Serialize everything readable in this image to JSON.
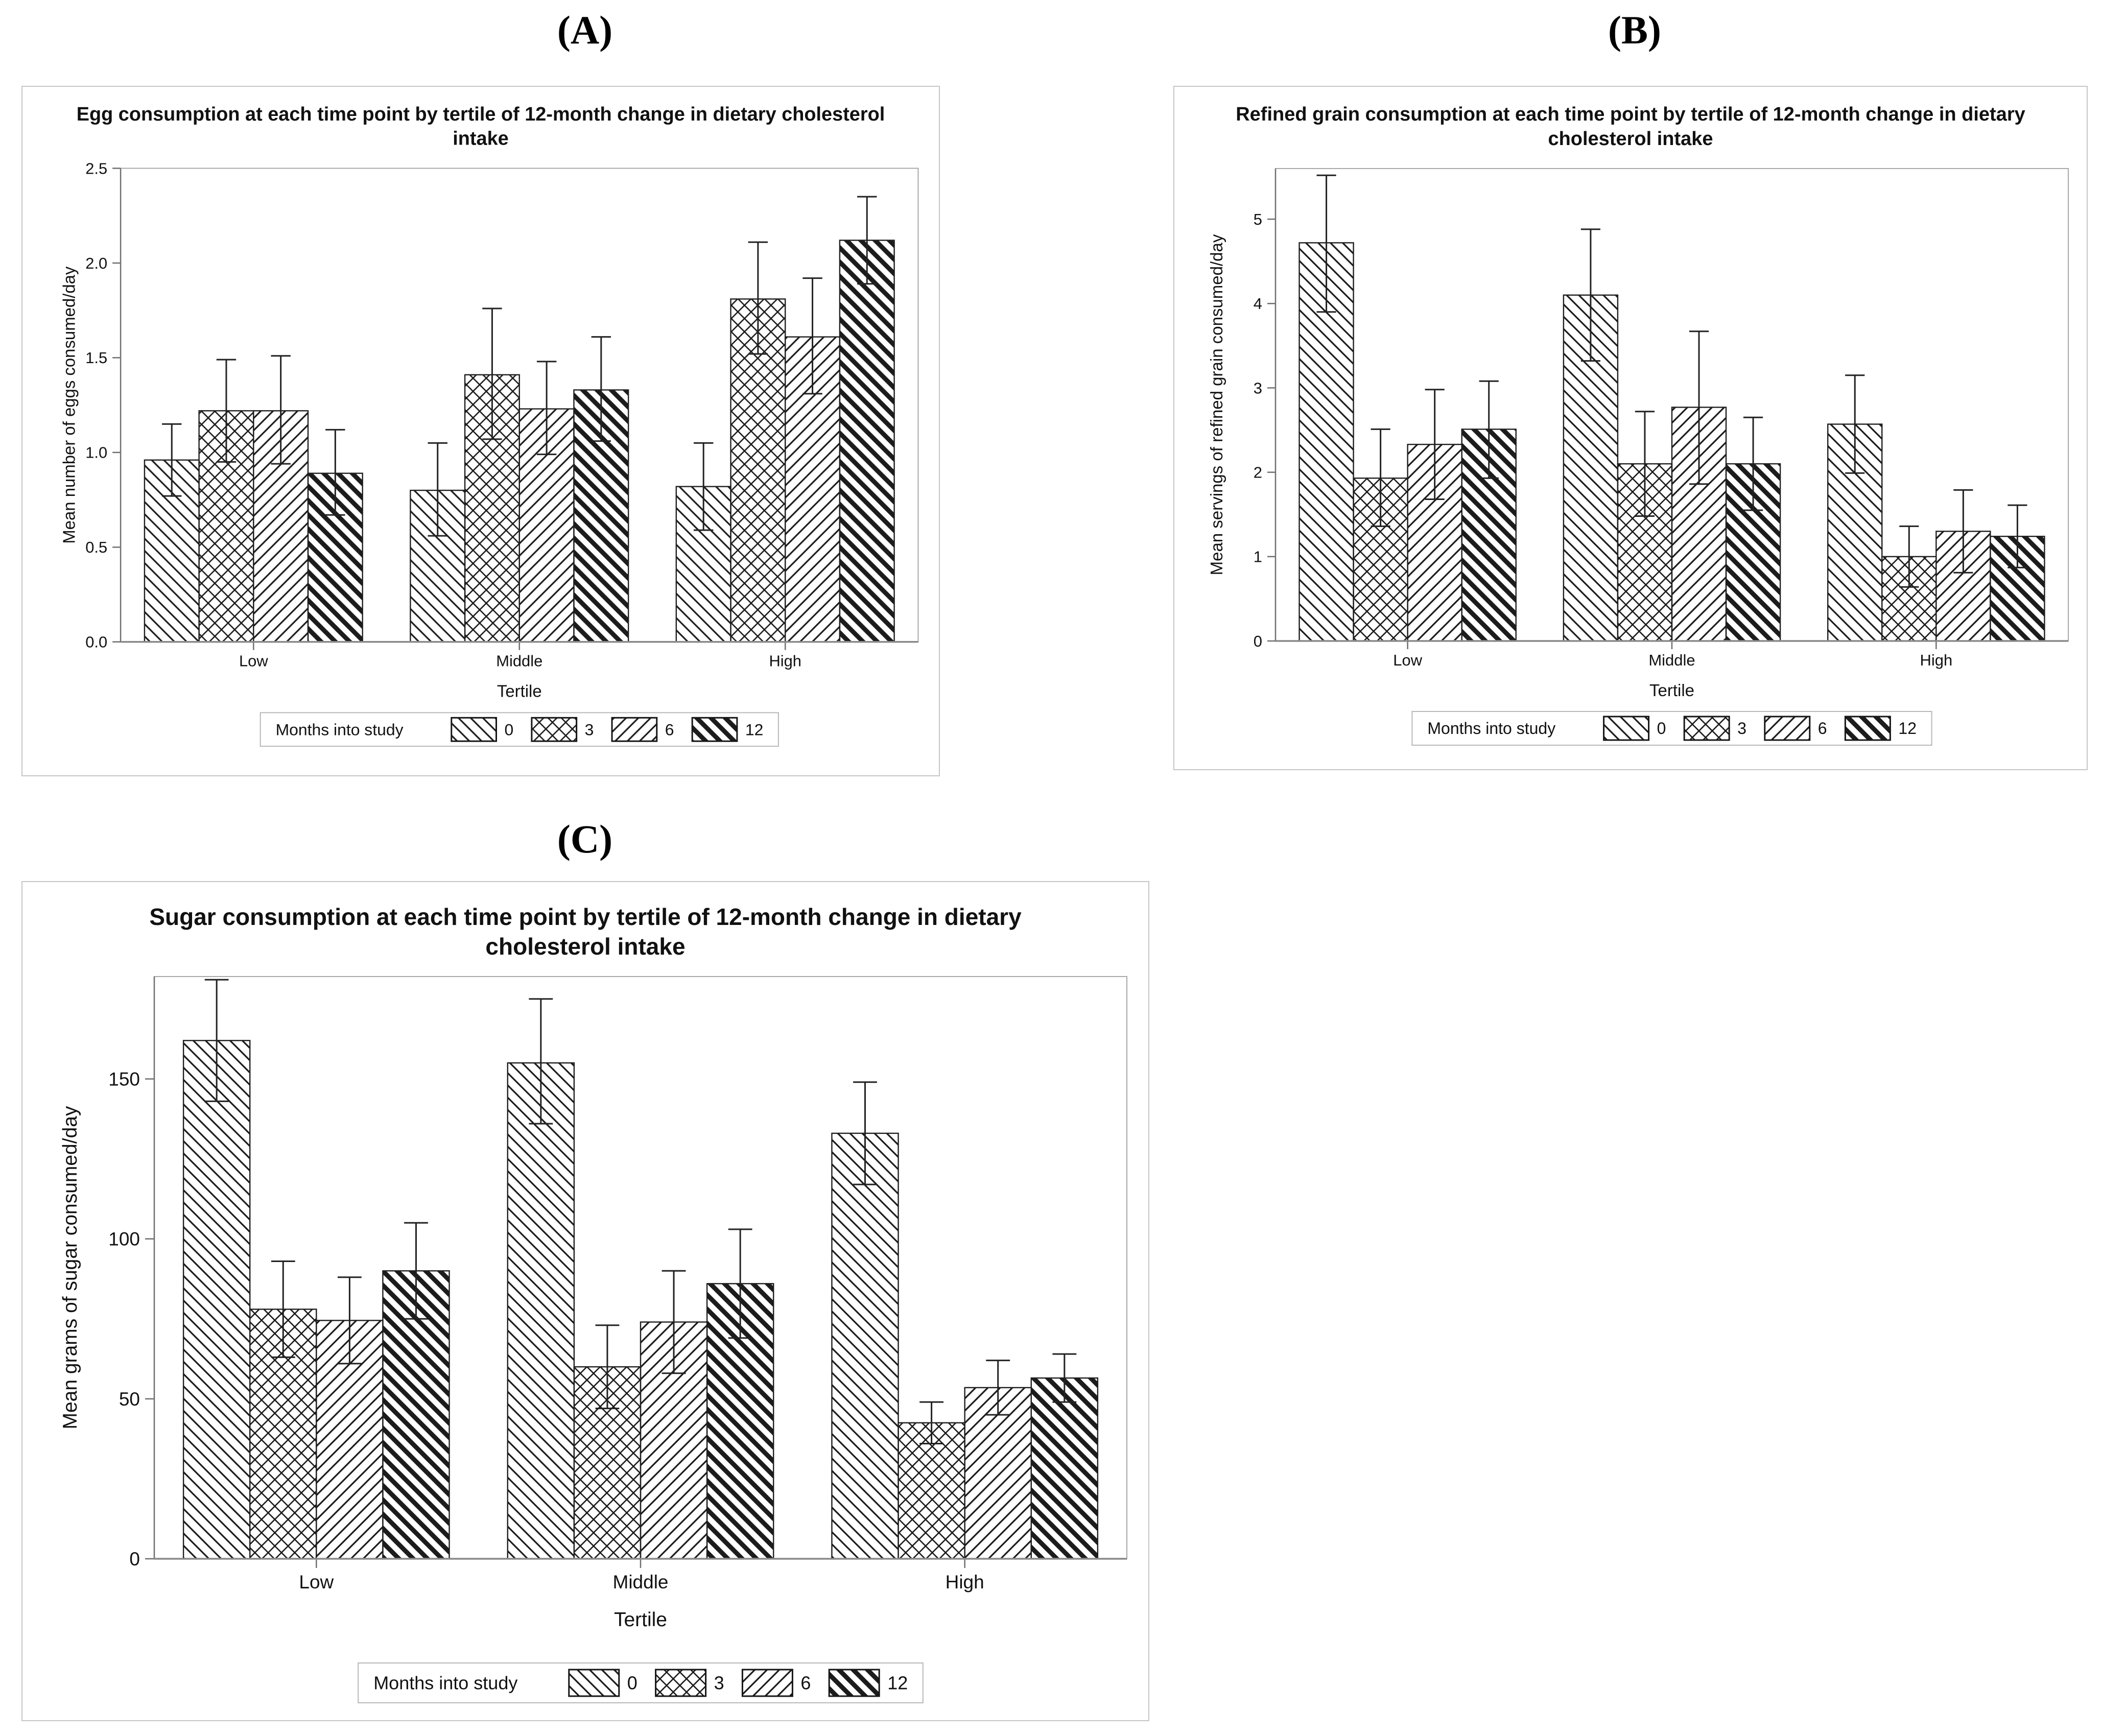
{
  "page": {
    "background": "#ffffff",
    "ink": "#111111",
    "frame_color": "#a8a8a8",
    "axis_color": "#6f6f6f"
  },
  "panel_letters": [
    {
      "label": "(A)"
    },
    {
      "label": "(B)"
    },
    {
      "label": "(C)"
    }
  ],
  "legend": {
    "label": "Months into study",
    "entries": [
      {
        "label": "0",
        "pattern": "hatch-backslash-thin"
      },
      {
        "label": "3",
        "pattern": "hatch-crosshatch"
      },
      {
        "label": "6",
        "pattern": "hatch-forwardslash-thin"
      },
      {
        "label": "12",
        "pattern": "hatch-backslash-thick"
      }
    ]
  },
  "chart_data": [
    {
      "id": "A",
      "type": "bar",
      "title": "Egg consumption at each time point by tertile of 12-month change in dietary cholesterol intake",
      "title_lines": [
        "Egg consumption at each time point by tertile of 12-month change in dietary cholesterol",
        "intake"
      ],
      "xlabel": "Tertile",
      "ylabel": "Mean number of eggs consumed/day",
      "categories": [
        "Low",
        "Middle",
        "High"
      ],
      "ylim": [
        0,
        2.5
      ],
      "ytick_values": [
        0,
        0.5,
        1.0,
        1.5,
        2.0,
        2.5
      ],
      "ytick_labels": [
        "0.0",
        "0.5",
        "1.0",
        "1.5",
        "2.0",
        "2.5"
      ],
      "grid": false,
      "legend_position": "bottom",
      "error_bars": true,
      "series": [
        {
          "name": "0",
          "pattern": "hatch-backslash-thin",
          "values": [
            0.96,
            0.8,
            0.82
          ],
          "ci": [
            [
              0.77,
              1.15
            ],
            [
              0.56,
              1.05
            ],
            [
              0.59,
              1.05
            ]
          ]
        },
        {
          "name": "3",
          "pattern": "hatch-crosshatch",
          "values": [
            1.22,
            1.41,
            1.81
          ],
          "ci": [
            [
              0.95,
              1.49
            ],
            [
              1.07,
              1.76
            ],
            [
              1.52,
              2.11
            ]
          ]
        },
        {
          "name": "6",
          "pattern": "hatch-forwardslash-thin",
          "values": [
            1.22,
            1.23,
            1.61
          ],
          "ci": [
            [
              0.94,
              1.51
            ],
            [
              0.99,
              1.48
            ],
            [
              1.31,
              1.92
            ]
          ]
        },
        {
          "name": "12",
          "pattern": "hatch-backslash-thick",
          "values": [
            0.89,
            1.33,
            2.12
          ],
          "ci": [
            [
              0.67,
              1.12
            ],
            [
              1.06,
              1.61
            ],
            [
              1.89,
              2.35
            ]
          ]
        }
      ]
    },
    {
      "id": "B",
      "type": "bar",
      "title": "Refined grain consumption at each time point by tertile of 12-month change in dietary cholesterol intake",
      "title_lines": [
        "Refined grain consumption at each time point by tertile of 12-month change in dietary",
        "cholesterol intake"
      ],
      "xlabel": "Tertile",
      "ylabel": "Mean servings of refined grain consumed/day",
      "categories": [
        "Low",
        "Middle",
        "High"
      ],
      "ylim": [
        0,
        5.6
      ],
      "ytick_values": [
        0,
        1,
        2,
        3,
        4,
        5
      ],
      "ytick_labels": [
        "0",
        "1",
        "2",
        "3",
        "4",
        "5"
      ],
      "grid": false,
      "legend_position": "bottom",
      "error_bars": true,
      "series": [
        {
          "name": "0",
          "pattern": "hatch-backslash-thin",
          "values": [
            4.72,
            4.1,
            2.57
          ],
          "ci": [
            [
              3.9,
              5.52
            ],
            [
              3.32,
              4.88
            ],
            [
              1.99,
              3.15
            ]
          ]
        },
        {
          "name": "3",
          "pattern": "hatch-crosshatch",
          "values": [
            1.93,
            2.1,
            1.0
          ],
          "ci": [
            [
              1.36,
              2.51
            ],
            [
              1.48,
              2.72
            ],
            [
              0.64,
              1.36
            ]
          ]
        },
        {
          "name": "6",
          "pattern": "hatch-forwardslash-thin",
          "values": [
            2.33,
            2.77,
            1.3
          ],
          "ci": [
            [
              1.68,
              2.98
            ],
            [
              1.86,
              3.67
            ],
            [
              0.81,
              1.79
            ]
          ]
        },
        {
          "name": "12",
          "pattern": "hatch-backslash-thick",
          "values": [
            2.51,
            2.1,
            1.24
          ],
          "ci": [
            [
              1.93,
              3.08
            ],
            [
              1.55,
              2.65
            ],
            [
              0.87,
              1.61
            ]
          ]
        }
      ]
    },
    {
      "id": "C",
      "type": "bar",
      "title": "Sugar consumption at each time point by tertile of 12-month change in dietary cholesterol intake",
      "title_lines": [
        "Sugar consumption at each time point by tertile of 12-month change in dietary",
        "cholesterol intake"
      ],
      "xlabel": "Tertile",
      "ylabel": "Mean grams of sugar consumed/day",
      "categories": [
        "Low",
        "Middle",
        "High"
      ],
      "ylim": [
        0,
        182
      ],
      "ytick_values": [
        0,
        50,
        100,
        150
      ],
      "ytick_labels": [
        "0",
        "50",
        "100",
        "150"
      ],
      "grid": false,
      "legend_position": "bottom",
      "error_bars": true,
      "series": [
        {
          "name": "0",
          "pattern": "hatch-backslash-thin",
          "values": [
            162,
            155,
            133
          ],
          "ci": [
            [
              143,
              181
            ],
            [
              136,
              175
            ],
            [
              117,
              149
            ]
          ]
        },
        {
          "name": "3",
          "pattern": "hatch-crosshatch",
          "values": [
            78,
            60,
            42.5
          ],
          "ci": [
            [
              63,
              93
            ],
            [
              47,
              73
            ],
            [
              36,
              49
            ]
          ]
        },
        {
          "name": "6",
          "pattern": "hatch-forwardslash-thin",
          "values": [
            74.5,
            74,
            53.5
          ],
          "ci": [
            [
              61,
              88
            ],
            [
              58,
              90
            ],
            [
              45,
              62
            ]
          ]
        },
        {
          "name": "12",
          "pattern": "hatch-backslash-thick",
          "values": [
            90,
            86,
            56.5
          ],
          "ci": [
            [
              75,
              105
            ],
            [
              69,
              103
            ],
            [
              49,
              64
            ]
          ]
        }
      ]
    }
  ]
}
